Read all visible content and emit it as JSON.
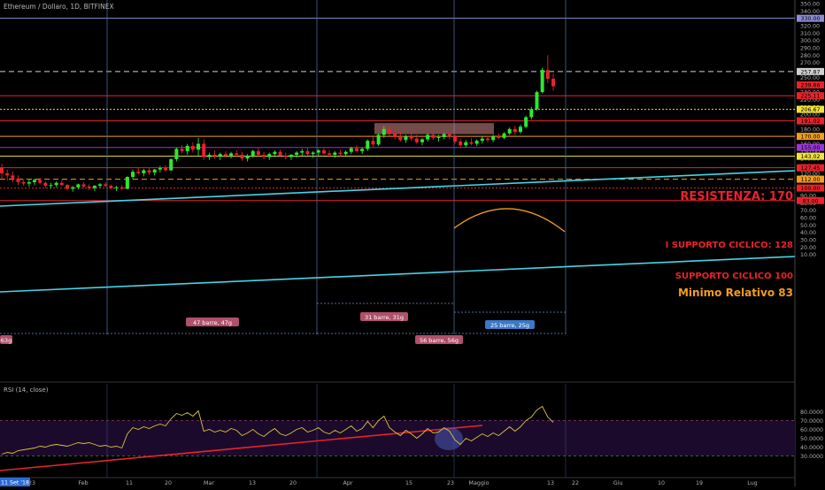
{
  "header": {
    "symbol": "Ethereum / Dollaro, 1D, BITFINEX"
  },
  "rsi_panel": {
    "label": "RSI (14, close)"
  },
  "date_badge": "11 Set '18",
  "colors": {
    "background": "#000000",
    "up": "#2ee82e",
    "down": "#e8232a",
    "axis_text": "#b0b0b0",
    "channel": "#46d4e6",
    "resistance_text": "#e8232a",
    "minimum_text": "#f39c1f"
  },
  "chart_data": [
    {
      "type": "candlestick",
      "title": "",
      "x_tick_labels": [
        "23",
        "Feb",
        "11",
        "20",
        "Mar",
        "13",
        "20",
        "Apr",
        "15",
        "23",
        "Maggio",
        "13",
        "22",
        "Giu",
        "10",
        "19",
        "Lug"
      ],
      "y_axis": {
        "min": 0,
        "max": 350,
        "side": "right",
        "tick_labels": [
          "350.00",
          "340.00",
          "330.00",
          "320.00",
          "310.00",
          "300.00",
          "290.00",
          "280.00",
          "270.00",
          "260.00",
          "250.00",
          "230.00",
          "220.00",
          "210.00",
          "200.00",
          "190.00",
          "180.00",
          "170.00",
          "160.00",
          "150.00",
          "140.00",
          "130.00",
          "120.00",
          "110.00",
          "100.00",
          "90.00",
          "80.00",
          "70.00",
          "60.00",
          "50.00",
          "40.00",
          "30.00",
          "20.00",
          "10.00"
        ]
      },
      "price_markers": [
        {
          "label": "330.00",
          "value": 330,
          "color": "#8b8bd6"
        },
        {
          "label": "257.87",
          "value": 257.87,
          "color": "#d0d0d0"
        },
        {
          "label": "239.66",
          "value": 239.66,
          "color": "#e8232a"
        },
        {
          "label": "225.11",
          "value": 225.11,
          "color": "#e8232a"
        },
        {
          "label": "206.67",
          "value": 206.67,
          "color": "#f1e33a"
        },
        {
          "label": "191.02",
          "value": 191.02,
          "color": "#e8232a"
        },
        {
          "label": "170.00",
          "value": 170,
          "color": "#f39c1f"
        },
        {
          "label": "155.00",
          "value": 155,
          "color": "#9b35d6"
        },
        {
          "label": "143.02",
          "value": 143.02,
          "color": "#f1e33a"
        },
        {
          "label": "127.45",
          "value": 127.45,
          "color": "#e8232a"
        },
        {
          "label": "112.00",
          "value": 112,
          "color": "#f39c1f"
        },
        {
          "label": "100.00",
          "value": 100,
          "color": "#e8232a"
        },
        {
          "label": "83.00",
          "value": 83,
          "color": "#e8232a"
        }
      ],
      "horizontal_levels": [
        {
          "value": 330,
          "color": "#8b8bd6",
          "style": "solid"
        },
        {
          "value": 257.87,
          "color": "#d0d0d0",
          "style": "dashed"
        },
        {
          "value": 225.11,
          "color": "#e8232a",
          "style": "solid"
        },
        {
          "value": 206.67,
          "color": "#f1e33a",
          "style": "dotted"
        },
        {
          "value": 191.02,
          "color": "#e8232a",
          "style": "solid"
        },
        {
          "value": 170,
          "color": "#f39c1f",
          "style": "solid"
        },
        {
          "value": 155,
          "color": "#9b35d6",
          "style": "solid"
        },
        {
          "value": 143.02,
          "color": "#f1e33a",
          "style": "solid"
        },
        {
          "value": 127.45,
          "color": "#e8232a",
          "style": "solid"
        },
        {
          "value": 112,
          "color": "#f39c1f",
          "style": "dashed"
        },
        {
          "value": 100,
          "color": "#e8232a",
          "style": "dotted"
        },
        {
          "value": 83,
          "color": "#e8232a",
          "style": "solid"
        }
      ],
      "annotations": [
        {
          "text": "RESISTENZA: 170",
          "value": 170,
          "color": "#e8232a"
        },
        {
          "text": "I SUPPORTO CICLICO: 128",
          "value": 128,
          "color": "#e8232a"
        },
        {
          "text": "SUPPORTO CICLICO 100",
          "value": 100,
          "color": "#e8232a"
        },
        {
          "text": "Minimo Relativo 83",
          "value": 83,
          "color": "#f39c1f"
        }
      ],
      "cycle_labels": [
        {
          "text": "47 barre, 47g",
          "color": "#b0506a"
        },
        {
          "text": "31 barre, 31g",
          "color": "#b0506a"
        },
        {
          "text": "56 barre, 56g",
          "color": "#b0506a"
        },
        {
          "text": "25 barre, 25g",
          "color": "#3a78c8"
        },
        {
          "text": "63g",
          "color": "#b0506a"
        }
      ],
      "candles": [
        [
          128,
          133,
          112,
          120
        ],
        [
          120,
          125,
          110,
          117
        ],
        [
          117,
          122,
          108,
          113
        ],
        [
          113,
          117,
          104,
          108
        ],
        [
          108,
          112,
          103,
          106
        ],
        [
          106,
          111,
          102,
          108
        ],
        [
          108,
          113,
          104,
          111
        ],
        [
          111,
          114,
          105,
          107
        ],
        [
          107,
          109,
          100,
          103
        ],
        [
          103,
          107,
          99,
          104
        ],
        [
          104,
          109,
          101,
          107
        ],
        [
          107,
          111,
          103,
          104
        ],
        [
          104,
          106,
          97,
          99
        ],
        [
          99,
          103,
          95,
          101
        ],
        [
          101,
          106,
          98,
          105
        ],
        [
          105,
          108,
          100,
          102
        ],
        [
          102,
          105,
          97,
          100
        ],
        [
          100,
          104,
          96,
          103
        ],
        [
          103,
          107,
          100,
          105
        ],
        [
          105,
          108,
          101,
          103
        ],
        [
          103,
          105,
          98,
          100
        ],
        [
          100,
          103,
          96,
          101
        ],
        [
          101,
          104,
          97,
          99
        ],
        [
          99,
          116,
          98,
          115
        ],
        [
          115,
          125,
          112,
          122
        ],
        [
          122,
          128,
          118,
          120
        ],
        [
          120,
          126,
          116,
          124
        ],
        [
          124,
          127,
          118,
          121
        ],
        [
          121,
          126,
          117,
          125
        ],
        [
          125,
          130,
          121,
          127
        ],
        [
          127,
          131,
          122,
          124
        ],
        [
          124,
          140,
          123,
          139
        ],
        [
          139,
          155,
          136,
          153
        ],
        [
          153,
          158,
          147,
          150
        ],
        [
          150,
          160,
          145,
          157
        ],
        [
          157,
          162,
          148,
          152
        ],
        [
          152,
          168,
          144,
          160
        ],
        [
          160,
          166,
          138,
          142
        ],
        [
          142,
          148,
          138,
          145
        ],
        [
          145,
          151,
          140,
          143
        ],
        [
          143,
          148,
          138,
          146
        ],
        [
          146,
          150,
          141,
          144
        ],
        [
          144,
          149,
          140,
          147
        ],
        [
          147,
          151,
          142,
          145
        ],
        [
          145,
          149,
          137,
          140
        ],
        [
          140,
          146,
          136,
          144
        ],
        [
          144,
          152,
          141,
          150
        ],
        [
          150,
          154,
          143,
          145
        ],
        [
          145,
          149,
          139,
          142
        ],
        [
          142,
          148,
          138,
          146
        ],
        [
          146,
          151,
          142,
          149
        ],
        [
          149,
          152,
          143,
          144
        ],
        [
          144,
          148,
          139,
          142
        ],
        [
          142,
          146,
          138,
          145
        ],
        [
          145,
          150,
          141,
          148
        ],
        [
          148,
          153,
          144,
          150
        ],
        [
          150,
          154,
          144,
          146
        ],
        [
          146,
          150,
          141,
          148
        ],
        [
          148,
          153,
          144,
          151
        ],
        [
          151,
          154,
          145,
          147
        ],
        [
          147,
          151,
          142,
          145
        ],
        [
          145,
          150,
          141,
          148
        ],
        [
          148,
          152,
          143,
          146
        ],
        [
          146,
          151,
          142,
          149
        ],
        [
          149,
          156,
          146,
          154
        ],
        [
          154,
          158,
          148,
          150
        ],
        [
          150,
          155,
          146,
          153
        ],
        [
          153,
          166,
          150,
          164
        ],
        [
          164,
          170,
          156,
          159
        ],
        [
          159,
          174,
          157,
          172
        ],
        [
          172,
          184,
          168,
          180
        ],
        [
          180,
          185,
          170,
          174
        ],
        [
          174,
          180,
          166,
          169
        ],
        [
          169,
          176,
          163,
          165
        ],
        [
          165,
          172,
          161,
          170
        ],
        [
          170,
          175,
          164,
          167
        ],
        [
          167,
          172,
          160,
          162
        ],
        [
          162,
          168,
          158,
          166
        ],
        [
          166,
          174,
          163,
          172
        ],
        [
          172,
          176,
          165,
          168
        ],
        [
          168,
          172,
          163,
          169
        ],
        [
          169,
          175,
          166,
          173
        ],
        [
          173,
          176,
          166,
          170
        ],
        [
          170,
          172,
          160,
          163
        ],
        [
          163,
          167,
          155,
          158
        ],
        [
          158,
          165,
          155,
          162
        ],
        [
          162,
          167,
          158,
          160
        ],
        [
          160,
          166,
          157,
          164
        ],
        [
          164,
          170,
          160,
          167
        ],
        [
          167,
          171,
          162,
          165
        ],
        [
          165,
          172,
          162,
          170
        ],
        [
          170,
          174,
          166,
          168
        ],
        [
          168,
          176,
          166,
          174
        ],
        [
          174,
          182,
          172,
          180
        ],
        [
          180,
          184,
          172,
          176
        ],
        [
          176,
          186,
          174,
          183
        ],
        [
          183,
          198,
          181,
          196
        ],
        [
          196,
          210,
          193,
          207
        ],
        [
          207,
          232,
          205,
          230
        ],
        [
          230,
          263,
          228,
          260
        ],
        [
          260,
          280,
          242,
          248
        ],
        [
          248,
          255,
          232,
          238
        ]
      ],
      "rsi": {
        "ylim": [
          30,
          90
        ],
        "tick_labels": [
          "80.0000",
          "70.0000",
          "60.0000",
          "50.0000",
          "40.0000",
          "30.0000"
        ],
        "values": [
          32,
          34,
          33,
          36,
          37,
          38,
          39,
          41,
          40,
          42,
          43,
          42,
          41,
          43,
          45,
          44,
          45,
          43,
          41,
          42,
          40,
          41,
          39,
          55,
          62,
          60,
          63,
          61,
          64,
          66,
          64,
          72,
          78,
          76,
          79,
          75,
          81,
          58,
          60,
          57,
          59,
          57,
          61,
          59,
          53,
          56,
          60,
          55,
          52,
          57,
          61,
          55,
          53,
          56,
          60,
          62,
          57,
          59,
          62,
          57,
          55,
          59,
          56,
          60,
          64,
          58,
          61,
          69,
          62,
          70,
          75,
          62,
          57,
          53,
          59,
          55,
          50,
          55,
          61,
          56,
          57,
          62,
          58,
          48,
          43,
          50,
          47,
          51,
          55,
          52,
          56,
          53,
          58,
          63,
          58,
          63,
          70,
          74,
          82,
          86,
          74,
          68
        ]
      }
    }
  ]
}
